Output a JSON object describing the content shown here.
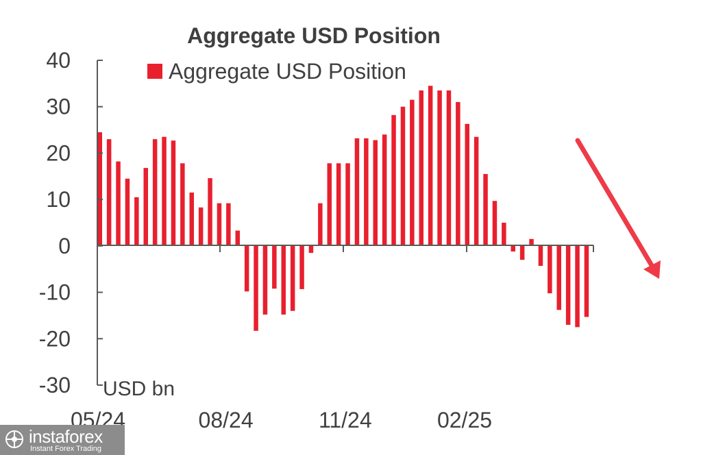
{
  "chart_data": {
    "type": "bar",
    "title": "Aggregate USD Position",
    "ylabel": "USD bn",
    "ylim": [
      -30,
      40
    ],
    "yticks": [
      "40",
      "30",
      "20",
      "10",
      "0",
      "-10",
      "-20",
      "-30"
    ],
    "xticks": [
      "05/24",
      "08/24",
      "11/24",
      "02/25"
    ],
    "legend_position": "top",
    "grid": false,
    "series": [
      {
        "name": "Aggregate USD Position",
        "color": "#e8202e",
        "values": [
          24.5,
          23.0,
          18.2,
          14.5,
          10.5,
          16.8,
          23.0,
          23.5,
          22.7,
          17.8,
          11.5,
          8.3,
          14.6,
          9.2,
          9.2,
          3.3,
          -9.8,
          -18.3,
          -14.8,
          -9.2,
          -14.8,
          -14.0,
          -9.3,
          -1.5,
          9.2,
          17.8,
          17.8,
          17.8,
          23.2,
          23.2,
          22.8,
          24.0,
          28.2,
          30.0,
          31.5,
          33.5,
          34.5,
          33.5,
          33.5,
          31.0,
          26.3,
          23.5,
          15.5,
          9.7,
          5.0,
          -1.2,
          -3.0,
          1.5,
          -4.3,
          -10.2,
          -13.8,
          -17.0,
          -17.5,
          -15.3
        ]
      }
    ]
  },
  "watermark": {
    "name": "instaforex",
    "subtitle": "Instant Forex Trading"
  },
  "colors": {
    "bar": "#e8202e",
    "axis": "#595959",
    "arrow": "#ee3b47",
    "watermark_bg": "#8c8c8c"
  }
}
